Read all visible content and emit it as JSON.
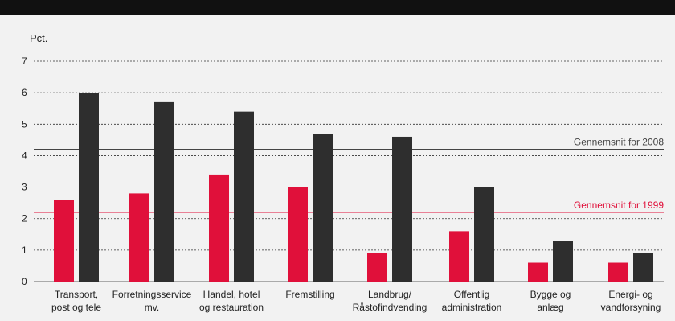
{
  "chart_data": {
    "type": "bar",
    "unit_label": "Pct.",
    "ylim": [
      0,
      7
    ],
    "yticks": [
      0,
      1,
      2,
      3,
      4,
      5,
      6,
      7
    ],
    "grid": true,
    "legend": "none",
    "categories": [
      [
        "Transport,",
        "post og tele"
      ],
      [
        "Forretningsservice",
        "mv."
      ],
      [
        "Handel, hotel",
        "og restauration"
      ],
      [
        "Fremstilling"
      ],
      [
        "Landbrug/",
        "Råstofindvending"
      ],
      [
        "Offentlig",
        "administration"
      ],
      [
        "Bygge og",
        "anlæg"
      ],
      [
        "Energi- og",
        "vandforsyning"
      ]
    ],
    "series": [
      {
        "values": [
          2.6,
          2.8,
          3.4,
          3.0,
          0.9,
          1.6,
          0.6,
          0.6
        ]
      },
      {
        "values": [
          6.0,
          5.7,
          5.4,
          4.7,
          4.6,
          3.0,
          1.3,
          0.9
        ]
      }
    ],
    "reference_lines": [
      {
        "label": "Gennemsnit for 2008",
        "value": 4.2,
        "color": "#444444"
      },
      {
        "label": "Gennemsnit for 1999",
        "value": 2.2,
        "color": "#e0103a"
      }
    ],
    "colors": [
      "#e0103a",
      "#2e2e2e"
    ]
  }
}
